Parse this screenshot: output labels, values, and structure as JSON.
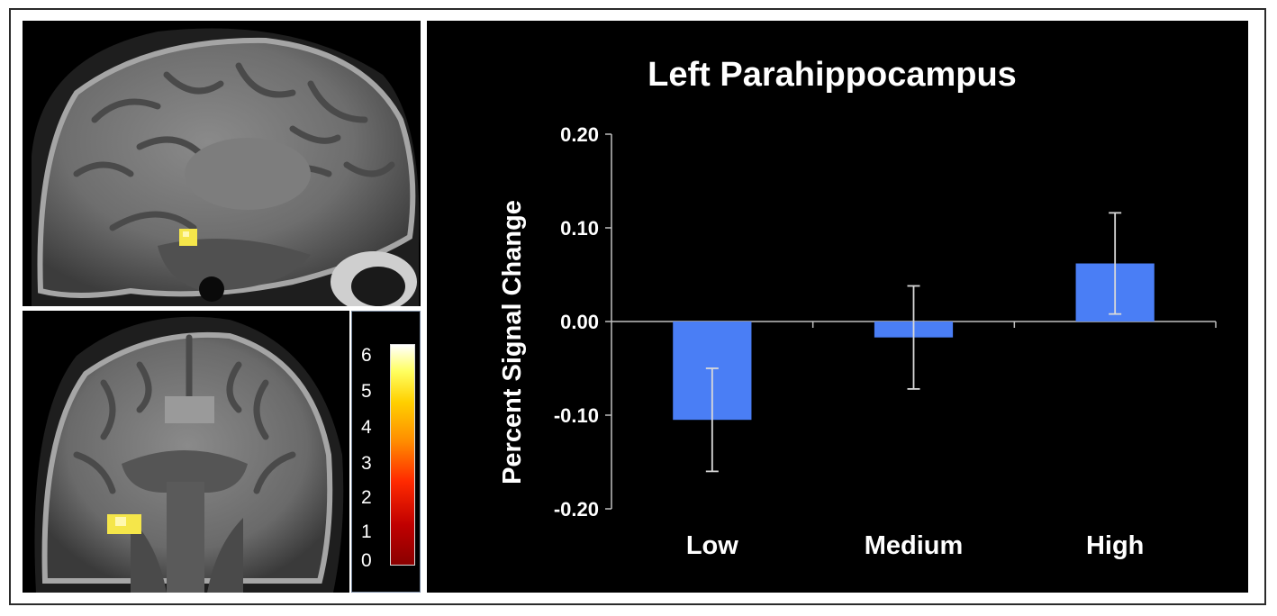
{
  "chart_data": {
    "type": "bar",
    "title": "Left Parahippocampus",
    "ylabel": "Percent Signal Change",
    "xlabel": "",
    "categories": [
      "Low",
      "Medium",
      "High"
    ],
    "values": [
      -0.105,
      -0.017,
      0.062
    ],
    "errors": [
      0.055,
      0.055,
      0.054
    ],
    "ylim": [
      -0.2,
      0.2
    ],
    "yticks": [
      0.2,
      0.1,
      0.0,
      -0.1,
      -0.2
    ],
    "ytick_labels": [
      "0.20",
      "0.10",
      "0.00",
      "-0.10",
      "-0.20"
    ],
    "bar_color": "#4a7ef5",
    "error_color": "#d9d9d9",
    "background": "#000000",
    "text_color": "#ffffff",
    "grid": false,
    "legend": "none"
  },
  "colorbar": {
    "labels": [
      "6",
      "5",
      "4",
      "3",
      "2",
      "1",
      "0"
    ],
    "min": 0,
    "max": 6.5,
    "colors": [
      "#8a0000",
      "#ff2a00",
      "#ffd000",
      "#ffffff"
    ]
  },
  "brain_images": {
    "sagittal": "sagittal-brain-slice",
    "coronal": "coronal-brain-slice",
    "activation_color": "#f5e64a"
  }
}
